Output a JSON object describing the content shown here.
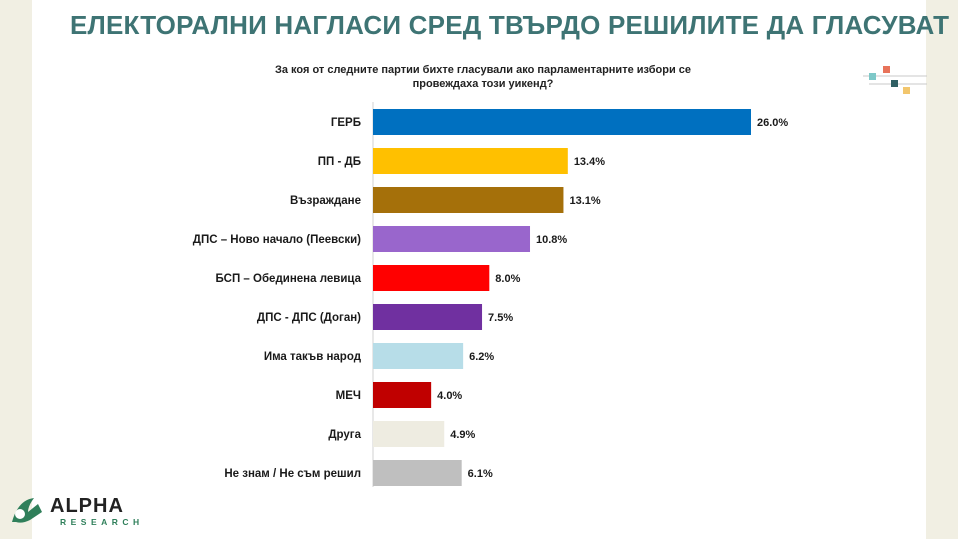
{
  "page": {
    "title": "ЕЛЕКТОРАЛНИ НАГЛАСИ СРЕД ТВЪРДО РЕШИЛИТЕ ДА ГЛАСУВАТ",
    "logo_main": "ALPHA",
    "logo_sub": "RESEARCH"
  },
  "chart_data": {
    "type": "bar",
    "orientation": "horizontal",
    "title": "За коя от следните партии бихте гласували ако парламентарните избори се провеждаха този уикенд?",
    "categories": [
      "ГЕРБ",
      "ПП - ДБ",
      "Възраждане",
      "ДПС – Ново начало (Пеевски)",
      "БСП – Обединена левица",
      "ДПС - ДПС (Доган)",
      "Има такъв народ",
      "МЕЧ",
      "Друга",
      "Не знам / Не съм решил"
    ],
    "values": [
      26.0,
      13.4,
      13.1,
      10.8,
      8.0,
      7.5,
      6.2,
      4.0,
      4.9,
      6.1
    ],
    "value_labels": [
      "26.0%",
      "13.4%",
      "13.1%",
      "10.8%",
      "8.0%",
      "7.5%",
      "6.2%",
      "4.0%",
      "4.9%",
      "6.1%"
    ],
    "colors": [
      "#0070c0",
      "#ffc000",
      "#a5700a",
      "#9966cc",
      "#ff0000",
      "#7030a0",
      "#b7dde8",
      "#c00000",
      "#eeece1",
      "#bfbfbf"
    ],
    "unit": "%",
    "xlim": [
      0,
      26.0
    ],
    "grid": false,
    "legend": "none"
  }
}
